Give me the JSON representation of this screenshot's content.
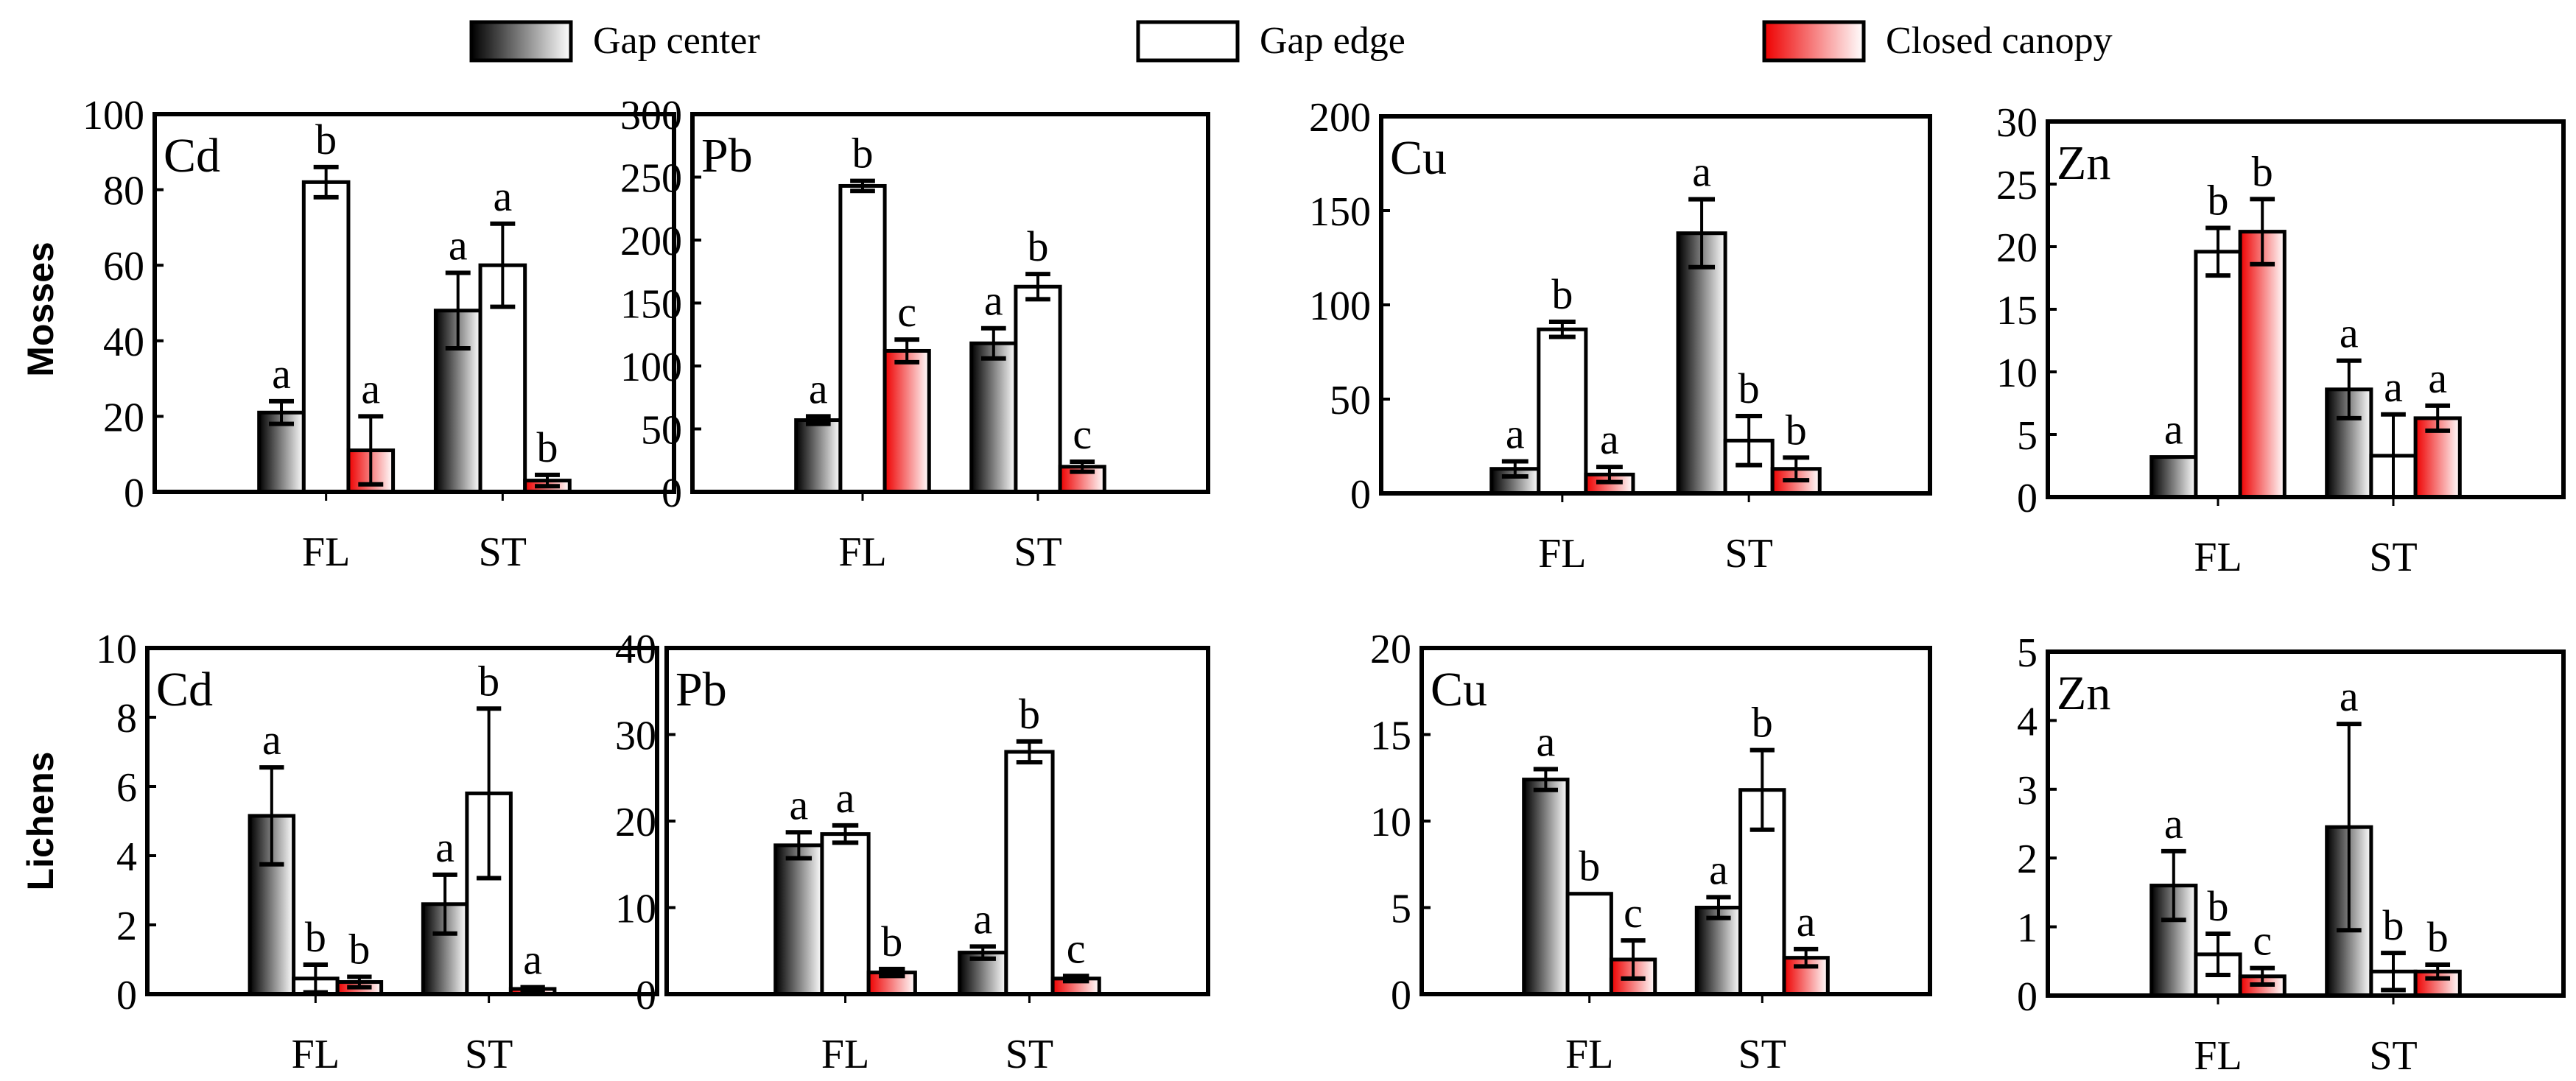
{
  "legend": [
    {
      "name": "Gap center",
      "fill": "gradient-black-white",
      "color": "#000000"
    },
    {
      "name": "Gap edge",
      "fill": "white",
      "color": "#ffffff"
    },
    {
      "name": "Closed canopy",
      "fill": "gradient-red-white",
      "color": "#ee0000"
    }
  ],
  "row_labels": [
    "Mosses",
    "Lichens"
  ],
  "chart_data": [
    {
      "type": "bar",
      "row": "Mosses",
      "title": "Cd",
      "categories": [
        "FL",
        "ST"
      ],
      "ylim": [
        0,
        100
      ],
      "yticks": [
        0,
        20,
        40,
        60,
        80,
        100
      ],
      "series": [
        {
          "name": "Gap center",
          "values": [
            21,
            48
          ],
          "errors": [
            3,
            10
          ],
          "letters": [
            "a",
            "a"
          ]
        },
        {
          "name": "Gap edge",
          "values": [
            82,
            60
          ],
          "errors": [
            4,
            11
          ],
          "letters": [
            "b",
            "a"
          ]
        },
        {
          "name": "Closed canopy",
          "values": [
            11,
            3
          ],
          "errors": [
            9,
            1.5
          ],
          "letters": [
            "a",
            "b"
          ]
        }
      ]
    },
    {
      "type": "bar",
      "row": "Mosses",
      "title": "Pb",
      "categories": [
        "FL",
        "ST"
      ],
      "ylim": [
        0,
        300
      ],
      "yticks": [
        0,
        50,
        100,
        150,
        200,
        250,
        300
      ],
      "series": [
        {
          "name": "Gap center",
          "values": [
            57,
            118
          ],
          "errors": [
            3,
            12
          ],
          "letters": [
            "a",
            "a"
          ]
        },
        {
          "name": "Gap edge",
          "values": [
            243,
            163
          ],
          "errors": [
            4,
            10
          ],
          "letters": [
            "b",
            "b"
          ]
        },
        {
          "name": "Closed canopy",
          "values": [
            112,
            20
          ],
          "errors": [
            9,
            4
          ],
          "letters": [
            "c",
            "c"
          ]
        }
      ]
    },
    {
      "type": "bar",
      "row": "Mosses",
      "title": "Cu",
      "categories": [
        "FL",
        "ST"
      ],
      "ylim": [
        0,
        200
      ],
      "yticks": [
        0,
        50,
        100,
        150,
        200
      ],
      "series": [
        {
          "name": "Gap center",
          "values": [
            13,
            138
          ],
          "errors": [
            4,
            18
          ],
          "letters": [
            "a",
            "a"
          ]
        },
        {
          "name": "Gap edge",
          "values": [
            87,
            28
          ],
          "errors": [
            4,
            13
          ],
          "letters": [
            "b",
            "b"
          ]
        },
        {
          "name": "Closed canopy",
          "values": [
            10,
            13
          ],
          "errors": [
            4,
            6
          ],
          "letters": [
            "a",
            "b"
          ]
        }
      ]
    },
    {
      "type": "bar",
      "row": "Mosses",
      "title": "Zn",
      "categories": [
        "FL",
        "ST"
      ],
      "ylim": [
        0,
        30
      ],
      "yticks": [
        0,
        5,
        10,
        15,
        20,
        25,
        30
      ],
      "series": [
        {
          "name": "Gap center",
          "values": [
            3.2,
            8.6
          ],
          "errors": [
            0,
            2.3
          ],
          "letters": [
            "a",
            "a"
          ]
        },
        {
          "name": "Gap edge",
          "values": [
            19.6,
            3.3
          ],
          "errors": [
            1.9,
            3.3
          ],
          "letters": [
            "b",
            "a"
          ]
        },
        {
          "name": "Closed canopy",
          "values": [
            21.2,
            6.3
          ],
          "errors": [
            2.6,
            1.0
          ],
          "letters": [
            "b",
            "a"
          ]
        }
      ]
    },
    {
      "type": "bar",
      "row": "Lichens",
      "title": "Cd",
      "categories": [
        "FL",
        "ST"
      ],
      "ylim": [
        0,
        10
      ],
      "yticks": [
        0,
        2,
        4,
        6,
        8,
        10
      ],
      "series": [
        {
          "name": "Gap center",
          "values": [
            5.15,
            2.6
          ],
          "errors": [
            1.4,
            0.85
          ],
          "letters": [
            "a",
            "a"
          ]
        },
        {
          "name": "Gap edge",
          "values": [
            0.45,
            5.8
          ],
          "errors": [
            0.4,
            2.45
          ],
          "letters": [
            "b",
            "b"
          ]
        },
        {
          "name": "Closed canopy",
          "values": [
            0.35,
            0.15
          ],
          "errors": [
            0.15,
            0.05
          ],
          "letters": [
            "b",
            "a"
          ]
        }
      ]
    },
    {
      "type": "bar",
      "row": "Lichens",
      "title": "Pb",
      "categories": [
        "FL",
        "ST"
      ],
      "ylim": [
        0,
        40
      ],
      "yticks": [
        0,
        10,
        20,
        30,
        40
      ],
      "series": [
        {
          "name": "Gap center",
          "values": [
            17.2,
            4.8
          ],
          "errors": [
            1.5,
            0.7
          ],
          "letters": [
            "a",
            "a"
          ]
        },
        {
          "name": "Gap edge",
          "values": [
            18.5,
            28
          ],
          "errors": [
            1.0,
            1.2
          ],
          "letters": [
            "a",
            "b"
          ]
        },
        {
          "name": "Closed canopy",
          "values": [
            2.5,
            1.8
          ],
          "errors": [
            0.4,
            0.3
          ],
          "letters": [
            "b",
            "c"
          ]
        }
      ]
    },
    {
      "type": "bar",
      "row": "Lichens",
      "title": "Cu",
      "categories": [
        "FL",
        "ST"
      ],
      "ylim": [
        0,
        20
      ],
      "yticks": [
        0,
        5,
        10,
        15,
        20
      ],
      "series": [
        {
          "name": "Gap center",
          "values": [
            12.4,
            5.0
          ],
          "errors": [
            0.6,
            0.6
          ],
          "letters": [
            "a",
            "a"
          ]
        },
        {
          "name": "Gap edge",
          "values": [
            5.8,
            11.8
          ],
          "errors": [
            0,
            2.3
          ],
          "letters": [
            "b",
            "b"
          ]
        },
        {
          "name": "Closed canopy",
          "values": [
            2.0,
            2.1
          ],
          "errors": [
            1.1,
            0.5
          ],
          "letters": [
            "c",
            "a"
          ]
        }
      ]
    },
    {
      "type": "bar",
      "row": "Lichens",
      "title": "Zn",
      "categories": [
        "FL",
        "ST"
      ],
      "ylim": [
        0,
        5
      ],
      "yticks": [
        0,
        1,
        2,
        3,
        4,
        5
      ],
      "series": [
        {
          "name": "Gap center",
          "values": [
            1.6,
            2.45
          ],
          "errors": [
            0.5,
            1.5
          ],
          "letters": [
            "a",
            "a"
          ]
        },
        {
          "name": "Gap edge",
          "values": [
            0.6,
            0.35
          ],
          "errors": [
            0.3,
            0.27
          ],
          "letters": [
            "b",
            "b"
          ]
        },
        {
          "name": "Closed canopy",
          "values": [
            0.28,
            0.35
          ],
          "errors": [
            0.12,
            0.1
          ],
          "letters": [
            "c",
            "b"
          ]
        }
      ]
    }
  ]
}
